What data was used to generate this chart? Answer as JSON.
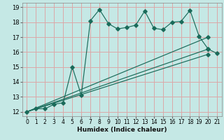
{
  "title": "",
  "xlabel": "Humidex (Indice chaleur)",
  "xlim": [
    -0.5,
    21.5
  ],
  "ylim": [
    11.7,
    19.3
  ],
  "xticks": [
    0,
    1,
    2,
    3,
    4,
    5,
    6,
    7,
    8,
    9,
    10,
    11,
    12,
    13,
    14,
    15,
    16,
    17,
    18,
    19,
    20,
    21
  ],
  "yticks": [
    12,
    13,
    14,
    15,
    16,
    17,
    18,
    19
  ],
  "bg_color": "#c5e8e5",
  "grid_color": "#dba8a8",
  "line_color": "#1a6b5a",
  "main_x": [
    0,
    1,
    2,
    3,
    4,
    5,
    6,
    7,
    8,
    9,
    10,
    11,
    12,
    13,
    14,
    15,
    16,
    17,
    18,
    19,
    20,
    21
  ],
  "main_y": [
    12.0,
    12.2,
    12.2,
    12.5,
    12.6,
    15.0,
    13.1,
    18.1,
    18.85,
    17.9,
    17.55,
    17.65,
    17.8,
    18.75,
    17.6,
    17.5,
    18.0,
    18.05,
    18.8,
    17.05,
    16.2,
    15.9
  ],
  "line1_x": [
    0,
    20
  ],
  "line1_y": [
    12.0,
    17.0
  ],
  "line2_x": [
    0,
    20
  ],
  "line2_y": [
    12.0,
    16.2
  ],
  "line3_x": [
    0,
    20
  ],
  "line3_y": [
    12.0,
    15.85
  ]
}
